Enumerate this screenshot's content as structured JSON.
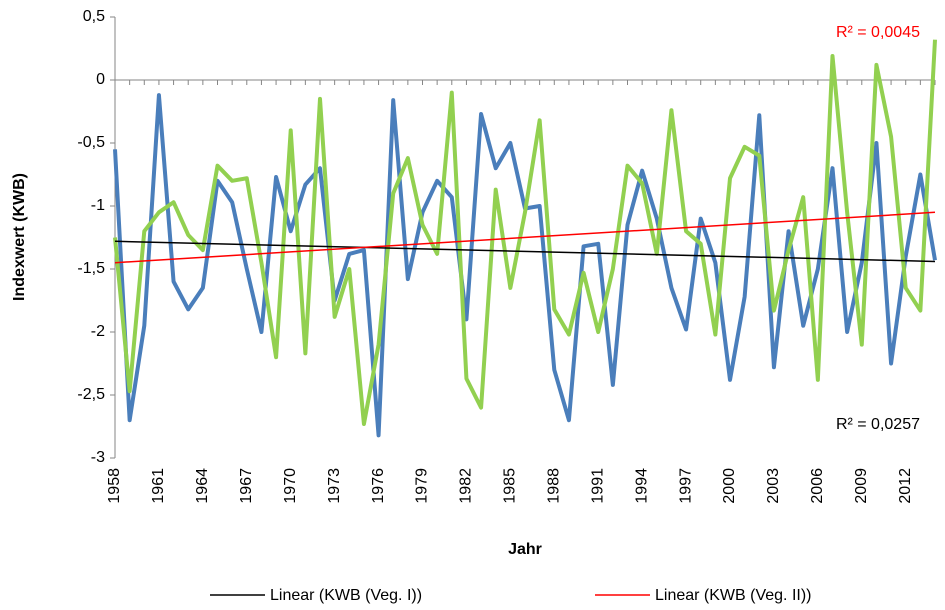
{
  "chart_data": {
    "type": "line",
    "y_label": "Indexwert (KWB)",
    "x_label": "Jahr",
    "categories": [
      "1958",
      null,
      null,
      "1961",
      null,
      null,
      "1964",
      null,
      null,
      "1967",
      null,
      null,
      "1970",
      null,
      null,
      "1973",
      null,
      null,
      "1976",
      null,
      null,
      "1979",
      null,
      null,
      "1982",
      null,
      null,
      "1985",
      null,
      null,
      "1988",
      null,
      null,
      "1991",
      null,
      null,
      "1994",
      null,
      null,
      "1997",
      null,
      null,
      "2000",
      null,
      null,
      "2003",
      null,
      null,
      "2006",
      null,
      null,
      "2009",
      null,
      null,
      "2012",
      null,
      null
    ],
    "series": [
      {
        "color": "#4a7ebb",
        "values": [
          -0.55,
          -2.7,
          -1.95,
          -0.12,
          -1.6,
          -1.82,
          -1.65,
          -0.8,
          -0.97,
          -1.5,
          -2.0,
          -0.77,
          -1.2,
          -0.83,
          -0.7,
          -1.75,
          -1.38,
          -1.35,
          -2.82,
          -0.16,
          -1.58,
          -1.05,
          -0.8,
          -0.93,
          -1.9,
          -0.27,
          -0.7,
          -0.5,
          -1.02,
          -1.0,
          -2.3,
          -2.7,
          -1.32,
          -1.3,
          -2.42,
          -1.15,
          -0.72,
          -1.1,
          -1.65,
          -1.98,
          -1.1,
          -1.45,
          -2.38,
          -1.72,
          -0.28,
          -2.28,
          -1.2,
          -1.95,
          -1.5,
          -0.7,
          -2.0,
          -1.45,
          -0.5,
          -2.25,
          -1.4,
          -0.75,
          -1.43
        ]
      },
      {
        "color": "#92d050",
        "values": [
          -1.25,
          -2.47,
          -1.2,
          -1.05,
          -0.97,
          -1.23,
          -1.35,
          -0.68,
          -0.8,
          -0.78,
          -1.45,
          -2.2,
          -0.4,
          -2.17,
          -0.15,
          -1.88,
          -1.5,
          -2.73,
          -2.1,
          -0.9,
          -0.62,
          -1.15,
          -1.38,
          -0.1,
          -2.37,
          -2.6,
          -0.87,
          -1.65,
          -1.05,
          -0.32,
          -1.82,
          -2.02,
          -1.53,
          -2.0,
          -1.5,
          -0.68,
          -0.82,
          -1.38,
          -0.24,
          -1.2,
          -1.3,
          -2.02,
          -0.78,
          -0.53,
          -0.6,
          -1.83,
          -1.35,
          -0.93,
          -2.38,
          0.19,
          -1.05,
          -2.1,
          0.12,
          -0.45,
          -1.65,
          -1.83,
          0.32
        ]
      }
    ],
    "trendlines": [
      {
        "name": "Linear (KWB (Veg. I))",
        "color": "#000000",
        "values": [
          -1.28,
          -1.44
        ],
        "r2_label": "R² = 0,0257"
      },
      {
        "name": "Linear (KWB (Veg. II))",
        "color": "#ff0000",
        "values": [
          -1.45,
          -1.05
        ],
        "r2_label": "R² = 0,0045"
      }
    ],
    "ylim": [
      -3,
      0.5
    ],
    "yticks": [
      -3,
      {
        "value": -2.5,
        "label": "-2,5"
      },
      -2,
      {
        "value": -1.5,
        "label": "-1,5"
      },
      -1,
      {
        "value": -0.5,
        "label": "-0,5"
      },
      0,
      {
        "value": 0.5,
        "label": "0,5"
      }
    ],
    "grid": false
  }
}
